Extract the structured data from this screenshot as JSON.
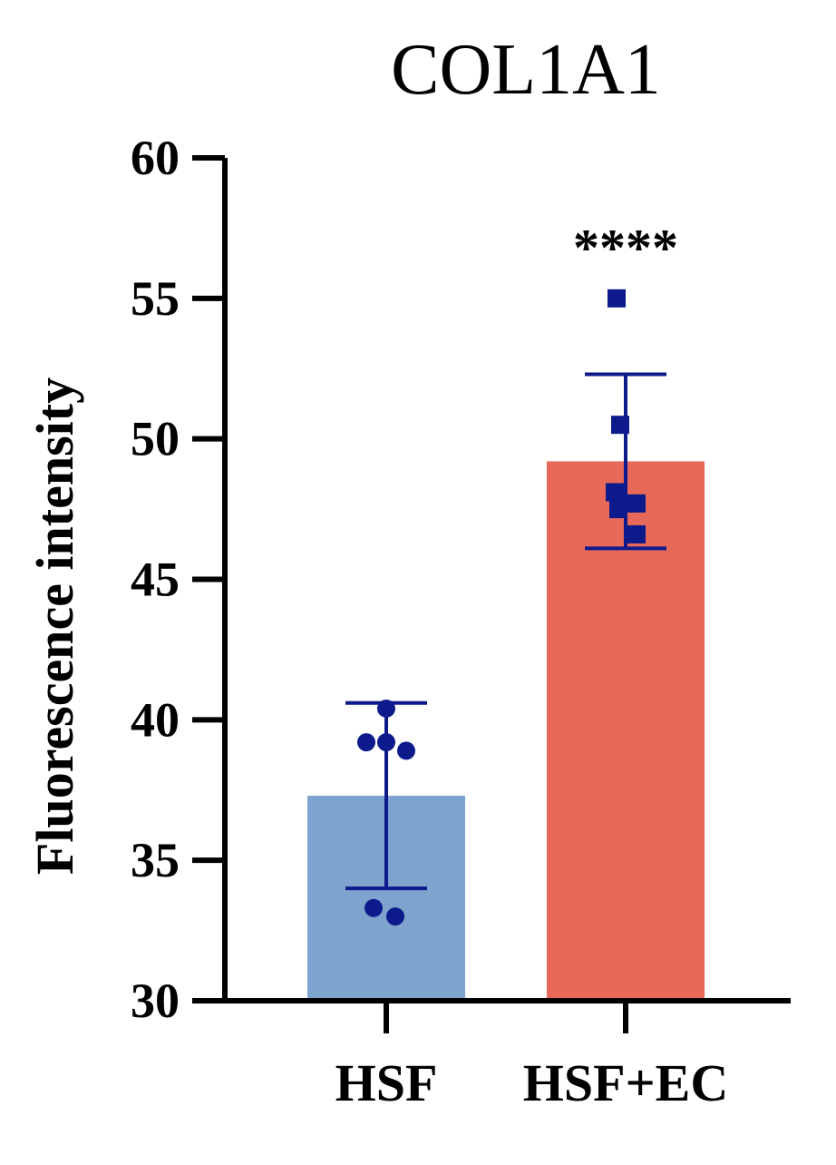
{
  "chart_data": {
    "type": "bar",
    "title": "COL1A1",
    "ylabel": "Fluorescence intensity",
    "xlabel": "",
    "ylim": [
      30,
      60
    ],
    "yticks": [
      30,
      35,
      40,
      45,
      50,
      55,
      60
    ],
    "categories": [
      "HSF",
      "HSF+EC"
    ],
    "values": [
      37.3,
      49.2
    ],
    "error": [
      3.3,
      3.1
    ],
    "points": [
      [
        40.4,
        39.2,
        39.2,
        38.9,
        33.3,
        33.0
      ],
      [
        55.0,
        50.5,
        48.1,
        47.7,
        47.5,
        46.6
      ]
    ],
    "point_markers": [
      "circle",
      "square"
    ],
    "significance": [
      "",
      "****"
    ],
    "colors": {
      "bars": [
        "#7fa3cf",
        "#e8695a"
      ],
      "points": "#0d1a8c",
      "error": "#0d1a8c",
      "axis": "#000000"
    }
  }
}
